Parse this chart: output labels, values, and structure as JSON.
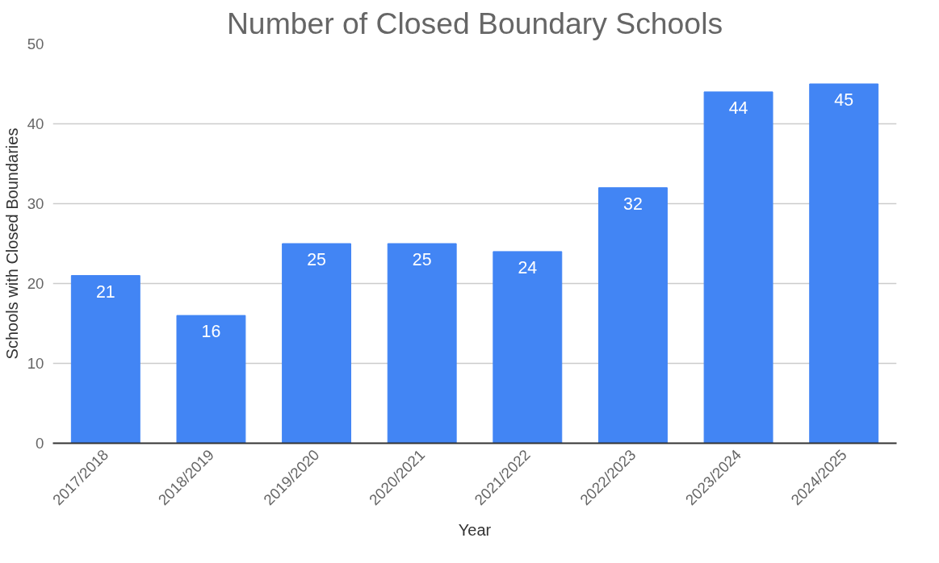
{
  "chart_data": {
    "type": "bar",
    "title": "Number of Closed Boundary Schools",
    "xlabel": "Year",
    "ylabel": "Schools with Closed Boundaries",
    "categories": [
      "2017/2018",
      "2018/2019",
      "2019/2020",
      "2020/2021",
      "2021/2022",
      "2022/2023",
      "2023/2024",
      "2024/2025"
    ],
    "values": [
      21,
      16,
      25,
      25,
      24,
      32,
      44,
      45
    ],
    "color": "#4285f4",
    "ylim": [
      0,
      50
    ],
    "yticks": [
      0,
      10,
      20,
      30,
      40,
      50
    ],
    "grid": "y",
    "data_labels": true
  }
}
